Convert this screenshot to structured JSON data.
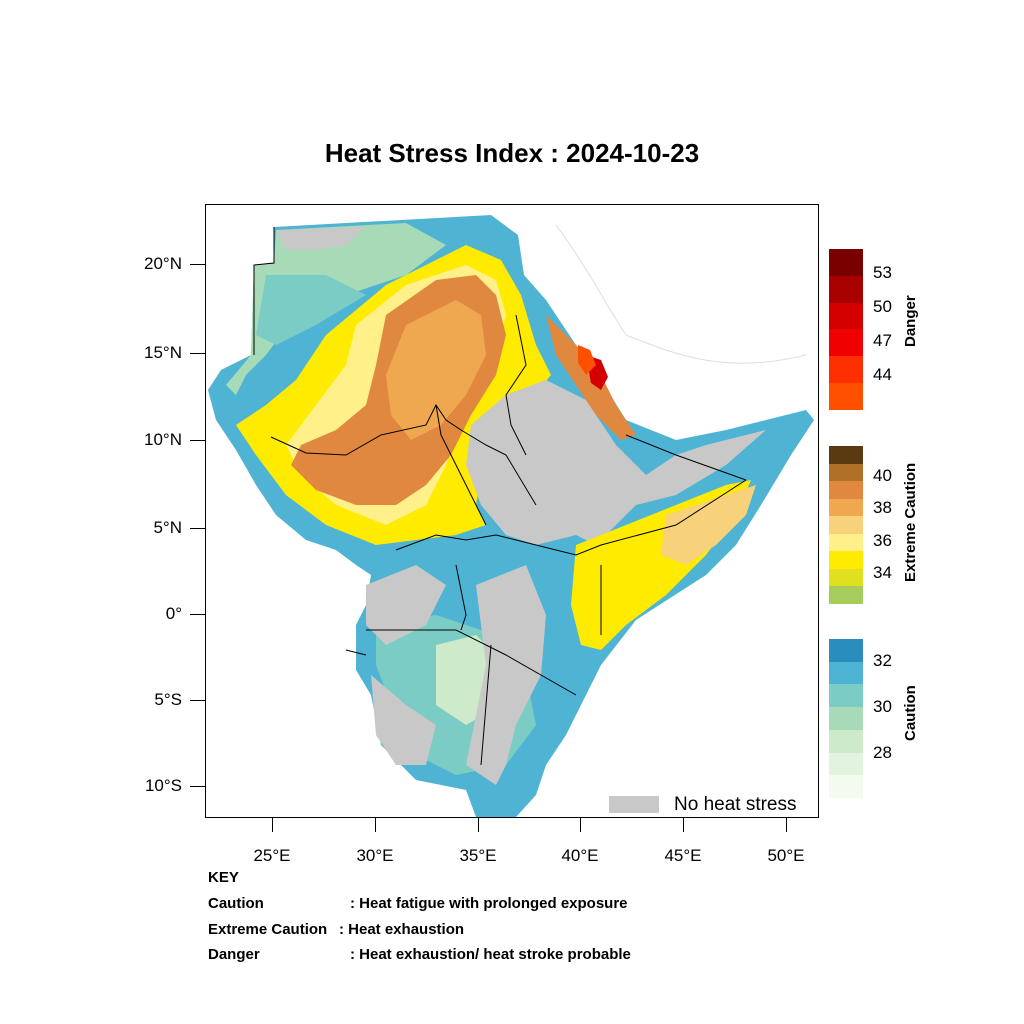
{
  "title": "Heat Stress Index : 2024-10-23",
  "lat_ticks": [
    "20°N",
    "15°N",
    "10°N",
    "5°N",
    "0°",
    "5°S",
    "10°S"
  ],
  "lon_ticks": [
    "25°E",
    "30°E",
    "35°E",
    "40°E",
    "45°E",
    "50°E"
  ],
  "colorbars": {
    "danger": {
      "title": "Danger",
      "labels": [
        "53",
        "50",
        "47",
        "44"
      ]
    },
    "extreme": {
      "title": "Extreme Caution",
      "labels": [
        "40",
        "38",
        "36",
        "34"
      ]
    },
    "caution": {
      "title": "Caution",
      "labels": [
        "32",
        "30",
        "28"
      ]
    }
  },
  "legend": {
    "no_stress": "No heat stress"
  },
  "key": {
    "heading": "KEY",
    "rows": [
      {
        "term": "Caution",
        "desc": ": Heat fatigue with prolonged exposure"
      },
      {
        "term": "Extreme Caution",
        "desc": " : Heat exhaustion"
      },
      {
        "term": "Danger",
        "desc": ": Heat exhaustion/ heat stroke probable"
      }
    ]
  },
  "colors": {
    "no_stress": "#c8c8c8",
    "caution": [
      "#f3faf0",
      "#e2f4dd",
      "#cdebca",
      "#a7dbb8",
      "#7bccc4",
      "#4fb3d3",
      "#2b8cbe"
    ],
    "extreme": [
      "#a6cc5c",
      "#e0e020",
      "#ffeb00",
      "#fff08a",
      "#f7d27a",
      "#f0a850",
      "#e08840",
      "#b07028",
      "#5a3a10"
    ],
    "danger": [
      "#ff5000",
      "#ff3000",
      "#f00000",
      "#d40000",
      "#a80000",
      "#7a0000"
    ]
  }
}
